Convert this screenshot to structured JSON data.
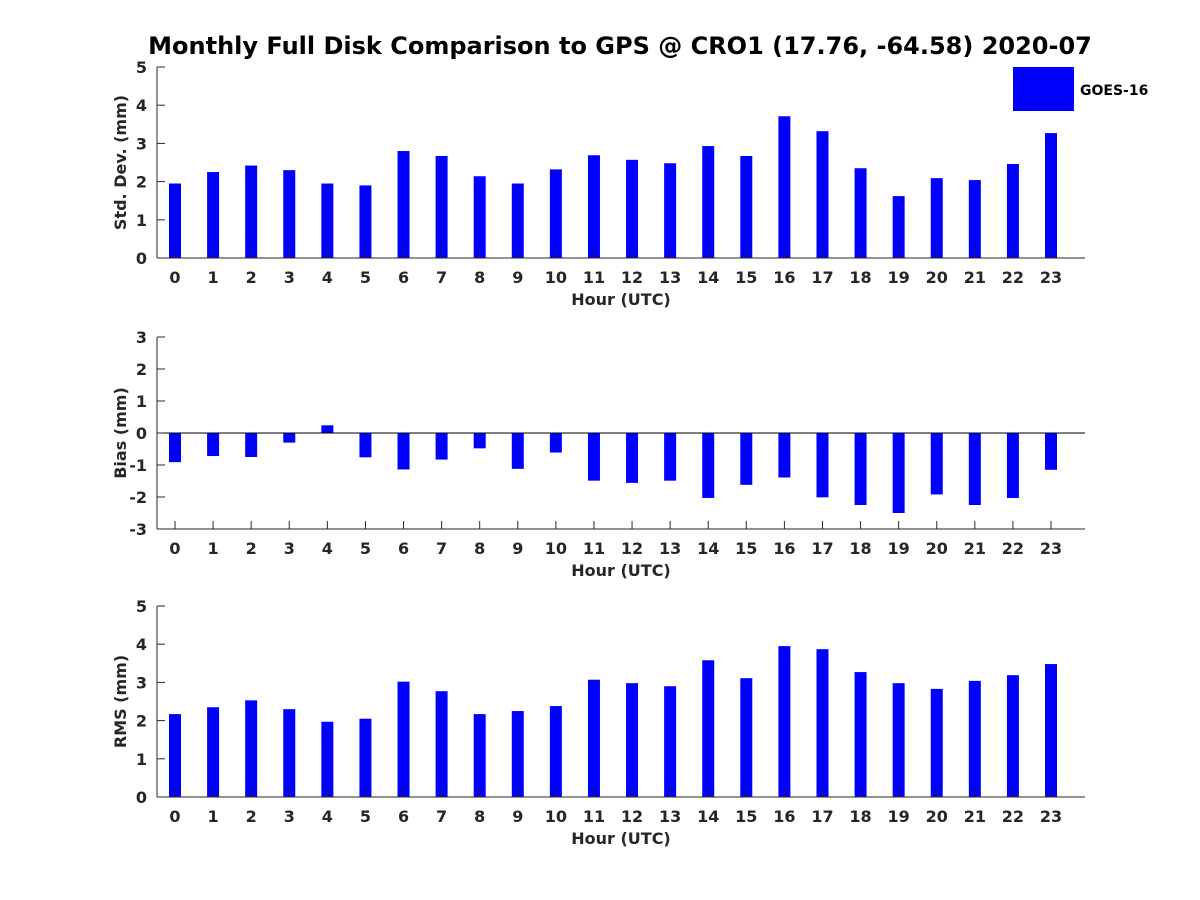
{
  "title": "Monthly Full Disk Comparison to GPS @ CRO1 (17.76, -64.58) 2020-07",
  "legend": {
    "label": "GOES-16",
    "color": "#0000ff",
    "placement": "top-right"
  },
  "chart_data": [
    {
      "type": "bar",
      "categories": [
        "0",
        "1",
        "2",
        "3",
        "4",
        "5",
        "6",
        "7",
        "8",
        "9",
        "10",
        "11",
        "12",
        "13",
        "14",
        "15",
        "16",
        "17",
        "18",
        "19",
        "20",
        "21",
        "22",
        "23"
      ],
      "series": [
        {
          "name": "GOES-16",
          "values": [
            1.95,
            2.25,
            2.42,
            2.3,
            1.95,
            1.9,
            2.8,
            2.67,
            2.14,
            1.95,
            2.32,
            2.69,
            2.57,
            2.48,
            2.93,
            2.67,
            3.71,
            3.32,
            2.35,
            1.62,
            2.09,
            2.04,
            2.46,
            3.27
          ]
        }
      ],
      "xlabel": "Hour (UTC)",
      "ylabel": "Std. Dev. (mm)",
      "ylim": [
        0,
        5
      ],
      "yticks": [
        "0",
        "1",
        "2",
        "3",
        "4",
        "5"
      ],
      "bar_color": "#0000ff",
      "grid": false
    },
    {
      "type": "bar",
      "categories": [
        "0",
        "1",
        "2",
        "3",
        "4",
        "5",
        "6",
        "7",
        "8",
        "9",
        "10",
        "11",
        "12",
        "13",
        "14",
        "15",
        "16",
        "17",
        "18",
        "19",
        "20",
        "21",
        "22",
        "23"
      ],
      "series": [
        {
          "name": "GOES-16",
          "values": [
            -0.91,
            -0.72,
            -0.75,
            -0.3,
            0.24,
            -0.76,
            -1.14,
            -0.83,
            -0.48,
            -1.12,
            -0.61,
            -1.49,
            -1.56,
            -1.49,
            -2.03,
            -1.62,
            -1.39,
            -2.01,
            -2.25,
            -2.5,
            -1.92,
            -2.25,
            -2.03,
            -1.15
          ]
        }
      ],
      "xlabel": "Hour (UTC)",
      "ylabel": "Bias (mm)",
      "ylim": [
        -3,
        3
      ],
      "yticks": [
        "-3",
        "-2",
        "-1",
        "0",
        "1",
        "2",
        "3"
      ],
      "bar_color": "#0000ff",
      "grid": false,
      "zero_line": true
    },
    {
      "type": "bar",
      "categories": [
        "0",
        "1",
        "2",
        "3",
        "4",
        "5",
        "6",
        "7",
        "8",
        "9",
        "10",
        "11",
        "12",
        "13",
        "14",
        "15",
        "16",
        "17",
        "18",
        "19",
        "20",
        "21",
        "22",
        "23"
      ],
      "series": [
        {
          "name": "GOES-16",
          "values": [
            2.17,
            2.35,
            2.53,
            2.3,
            1.97,
            2.05,
            3.02,
            2.77,
            2.17,
            2.25,
            2.38,
            3.07,
            2.98,
            2.9,
            3.58,
            3.11,
            3.95,
            3.87,
            3.27,
            2.98,
            2.83,
            3.04,
            3.19,
            3.48
          ]
        }
      ],
      "xlabel": "Hour (UTC)",
      "ylabel": "RMS (mm)",
      "ylim": [
        0,
        5
      ],
      "yticks": [
        "0",
        "1",
        "2",
        "3",
        "4",
        "5"
      ],
      "bar_color": "#0000ff",
      "grid": false
    }
  ]
}
